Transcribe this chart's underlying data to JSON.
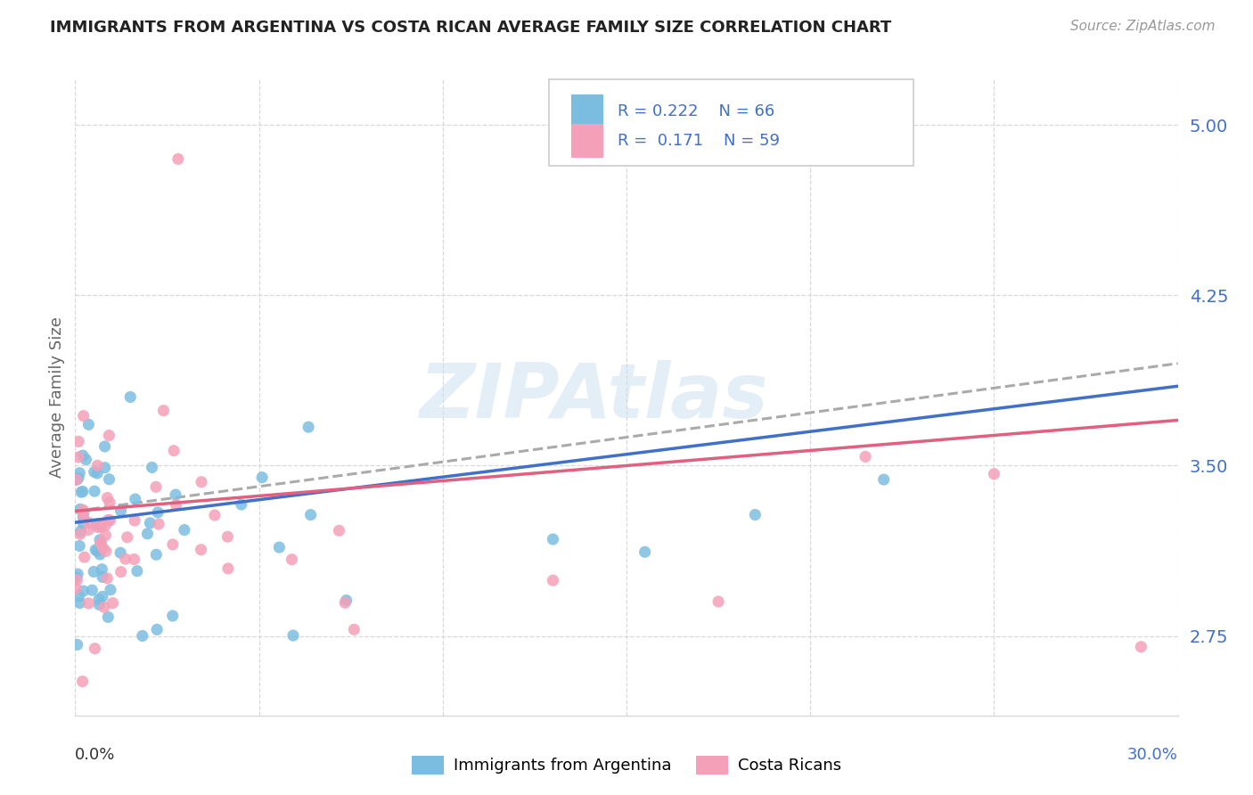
{
  "title": "IMMIGRANTS FROM ARGENTINA VS COSTA RICAN AVERAGE FAMILY SIZE CORRELATION CHART",
  "source": "Source: ZipAtlas.com",
  "ylabel": "Average Family Size",
  "yticks": [
    2.75,
    3.5,
    4.25,
    5.0
  ],
  "xlim": [
    0.0,
    0.3
  ],
  "ylim": [
    2.4,
    5.2
  ],
  "watermark": "ZIPAtlas",
  "color_blue": "#7bbde0",
  "color_pink": "#f4a0b8",
  "line_blue": "#4070c8",
  "line_pink": "#e06080",
  "line_gray": "#aaaaaa",
  "grid_color": "#d8d8d8",
  "title_color": "#222222",
  "source_color": "#999999",
  "ytick_color": "#4070c8",
  "ylabel_color": "#666666",
  "xlabel_left_color": "#333333",
  "xlabel_right_color": "#4070c8"
}
